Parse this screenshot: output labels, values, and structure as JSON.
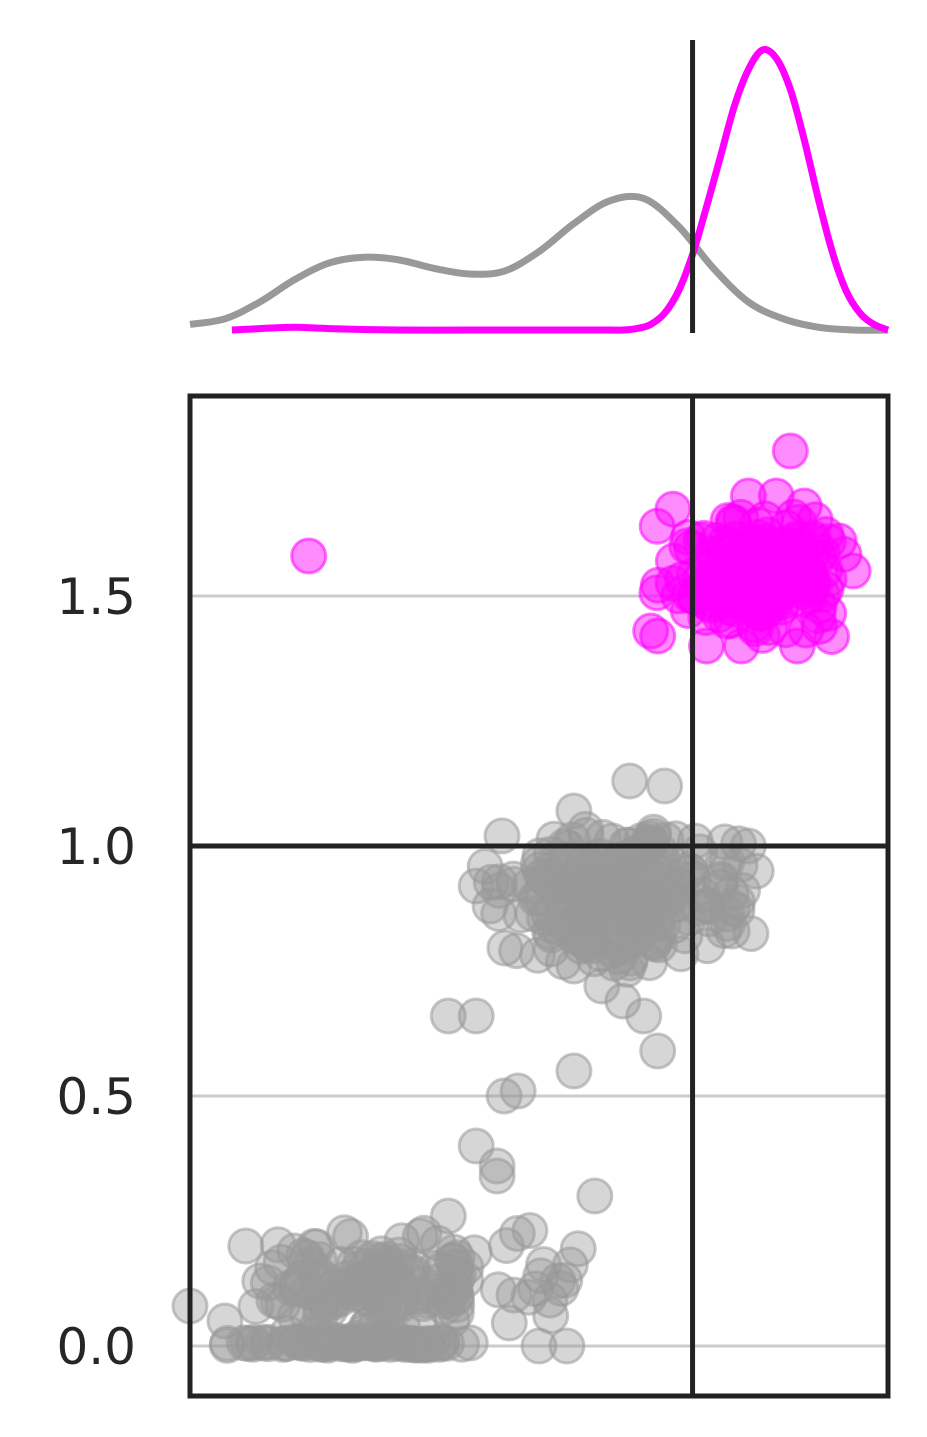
{
  "chart_data": {
    "type": "scatter",
    "marginal": "kde",
    "title": "",
    "xlabel": "",
    "ylabel": "",
    "xlim": [
      0.0,
      1.0
    ],
    "ylim": [
      -0.1,
      1.9
    ],
    "yticks": [
      0.0,
      0.5,
      1.0,
      1.5
    ],
    "ytick_labels": [
      "0.0",
      "0.5",
      "1.0",
      "1.5"
    ],
    "threshold_lines": {
      "x": 0.72,
      "y": 1.0
    },
    "colors": {
      "group_a": "#999999",
      "group_b": "#ff00ff",
      "lines": "#222222",
      "grid": "#cccccc"
    },
    "groups": [
      {
        "color": "#999999",
        "clusters": [
          {
            "x_range": [
              0.0,
              0.47
            ],
            "y_range": [
              0.0,
              0.01
            ],
            "count": 70
          },
          {
            "x_range": [
              0.08,
              0.45
            ],
            "y_range": [
              0.0,
              0.24
            ],
            "count": 140
          },
          {
            "x_range": [
              0.45,
              0.56
            ],
            "y_range": [
              0.0,
              0.26
            ],
            "count": 16
          },
          {
            "x_range": [
              0.4,
              0.83
            ],
            "y_range": [
              0.75,
              1.05
            ],
            "count": 240
          }
        ],
        "points": [
          [
            0.0,
            0.08
          ],
          [
            0.05,
            0.05
          ],
          [
            0.08,
            0.2
          ],
          [
            0.1,
            0.13
          ],
          [
            0.15,
            0.19
          ],
          [
            0.33,
            0.22
          ],
          [
            0.37,
            0.26
          ],
          [
            0.44,
            0.34
          ],
          [
            0.41,
            0.4
          ],
          [
            0.44,
            0.36
          ],
          [
            0.45,
            0.5
          ],
          [
            0.47,
            0.51
          ],
          [
            0.55,
            0.55
          ],
          [
            0.58,
            0.3
          ],
          [
            0.37,
            0.66
          ],
          [
            0.41,
            0.66
          ],
          [
            0.62,
            0.69
          ],
          [
            0.65,
            0.66
          ],
          [
            0.67,
            0.59
          ],
          [
            0.59,
            0.72
          ],
          [
            0.55,
            0.76
          ],
          [
            0.41,
            0.92
          ],
          [
            0.43,
            0.88
          ],
          [
            0.76,
            0.93
          ],
          [
            0.54,
            0.0
          ],
          [
            0.5,
            0.0
          ],
          [
            0.55,
            1.07
          ],
          [
            0.63,
            1.13
          ],
          [
            0.68,
            1.12
          ],
          [
            0.8,
            1.0
          ]
        ]
      },
      {
        "color": "#ff00ff",
        "clusters": [
          {
            "x_range": [
              0.66,
              0.95
            ],
            "y_range": [
              1.4,
              1.68
            ],
            "count": 170
          }
        ],
        "points": [
          [
            0.17,
            1.58
          ],
          [
            0.86,
            1.79
          ],
          [
            0.8,
            1.7
          ],
          [
            0.84,
            1.7
          ],
          [
            0.88,
            1.68
          ],
          [
            0.93,
            1.61
          ],
          [
            0.95,
            1.55
          ],
          [
            0.66,
            1.43
          ],
          [
            0.67,
            1.42
          ],
          [
            0.7,
            1.5
          ],
          [
            0.74,
            1.4
          ],
          [
            0.79,
            1.4
          ],
          [
            0.87,
            1.4
          ],
          [
            0.9,
            1.46
          ]
        ]
      }
    ],
    "kde": [
      {
        "color": "#999999",
        "x": [
          0.0,
          0.05,
          0.1,
          0.15,
          0.2,
          0.25,
          0.3,
          0.35,
          0.4,
          0.45,
          0.5,
          0.55,
          0.6,
          0.65,
          0.7,
          0.75,
          0.8,
          0.85,
          0.9,
          0.95,
          1.0
        ],
        "y": [
          0.02,
          0.04,
          0.1,
          0.18,
          0.24,
          0.26,
          0.25,
          0.22,
          0.2,
          0.21,
          0.28,
          0.38,
          0.46,
          0.47,
          0.37,
          0.22,
          0.1,
          0.04,
          0.01,
          0.0,
          0.0
        ]
      },
      {
        "color": "#ff00ff",
        "x": [
          0.06,
          0.1,
          0.15,
          0.2,
          0.3,
          0.4,
          0.5,
          0.6,
          0.62,
          0.64,
          0.66,
          0.68,
          0.7,
          0.72,
          0.74,
          0.76,
          0.78,
          0.8,
          0.82,
          0.84,
          0.86,
          0.88,
          0.9,
          0.92,
          0.94,
          0.96,
          0.98,
          1.0
        ],
        "y": [
          0.0,
          0.005,
          0.01,
          0.005,
          0.0,
          0.0,
          0.0,
          0.0,
          0.0,
          0.005,
          0.02,
          0.06,
          0.14,
          0.27,
          0.44,
          0.62,
          0.8,
          0.93,
          1.0,
          0.97,
          0.86,
          0.68,
          0.47,
          0.28,
          0.14,
          0.06,
          0.02,
          0.0
        ]
      }
    ]
  }
}
